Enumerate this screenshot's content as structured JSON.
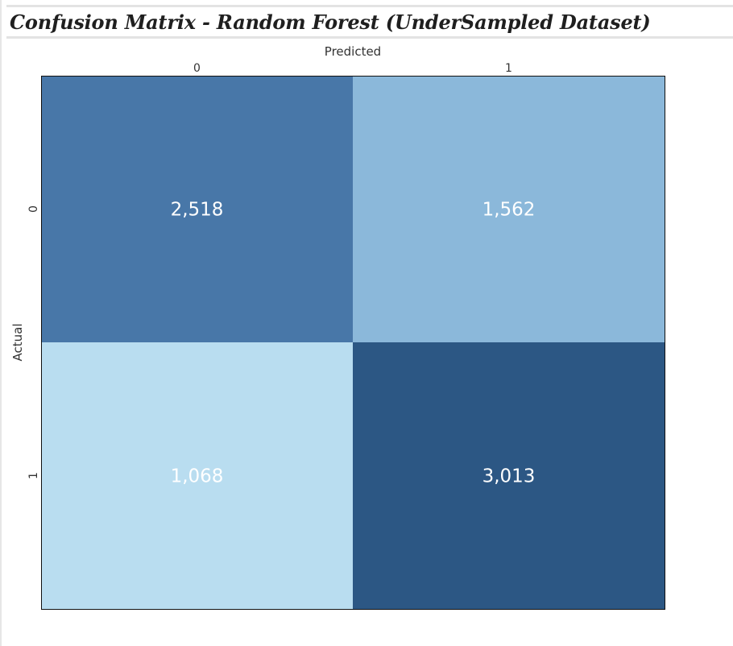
{
  "title": "Confusion Matrix - Random Forest (UnderSampled Dataset)",
  "chart_data": {
    "type": "heatmap",
    "xlabel": "Predicted",
    "ylabel": "Actual",
    "x_categories": [
      "0",
      "1"
    ],
    "y_categories": [
      "0",
      "1"
    ],
    "values": [
      [
        2518,
        1562
      ],
      [
        1068,
        3013
      ]
    ],
    "value_labels": [
      [
        "2,518",
        "1,562"
      ],
      [
        "1,068",
        "3,013"
      ]
    ],
    "cell_colors": [
      [
        "#4877a8",
        "#8bb8da"
      ],
      [
        "#b9ddf0",
        "#2c5784"
      ]
    ],
    "legend": "none",
    "grid": false
  }
}
